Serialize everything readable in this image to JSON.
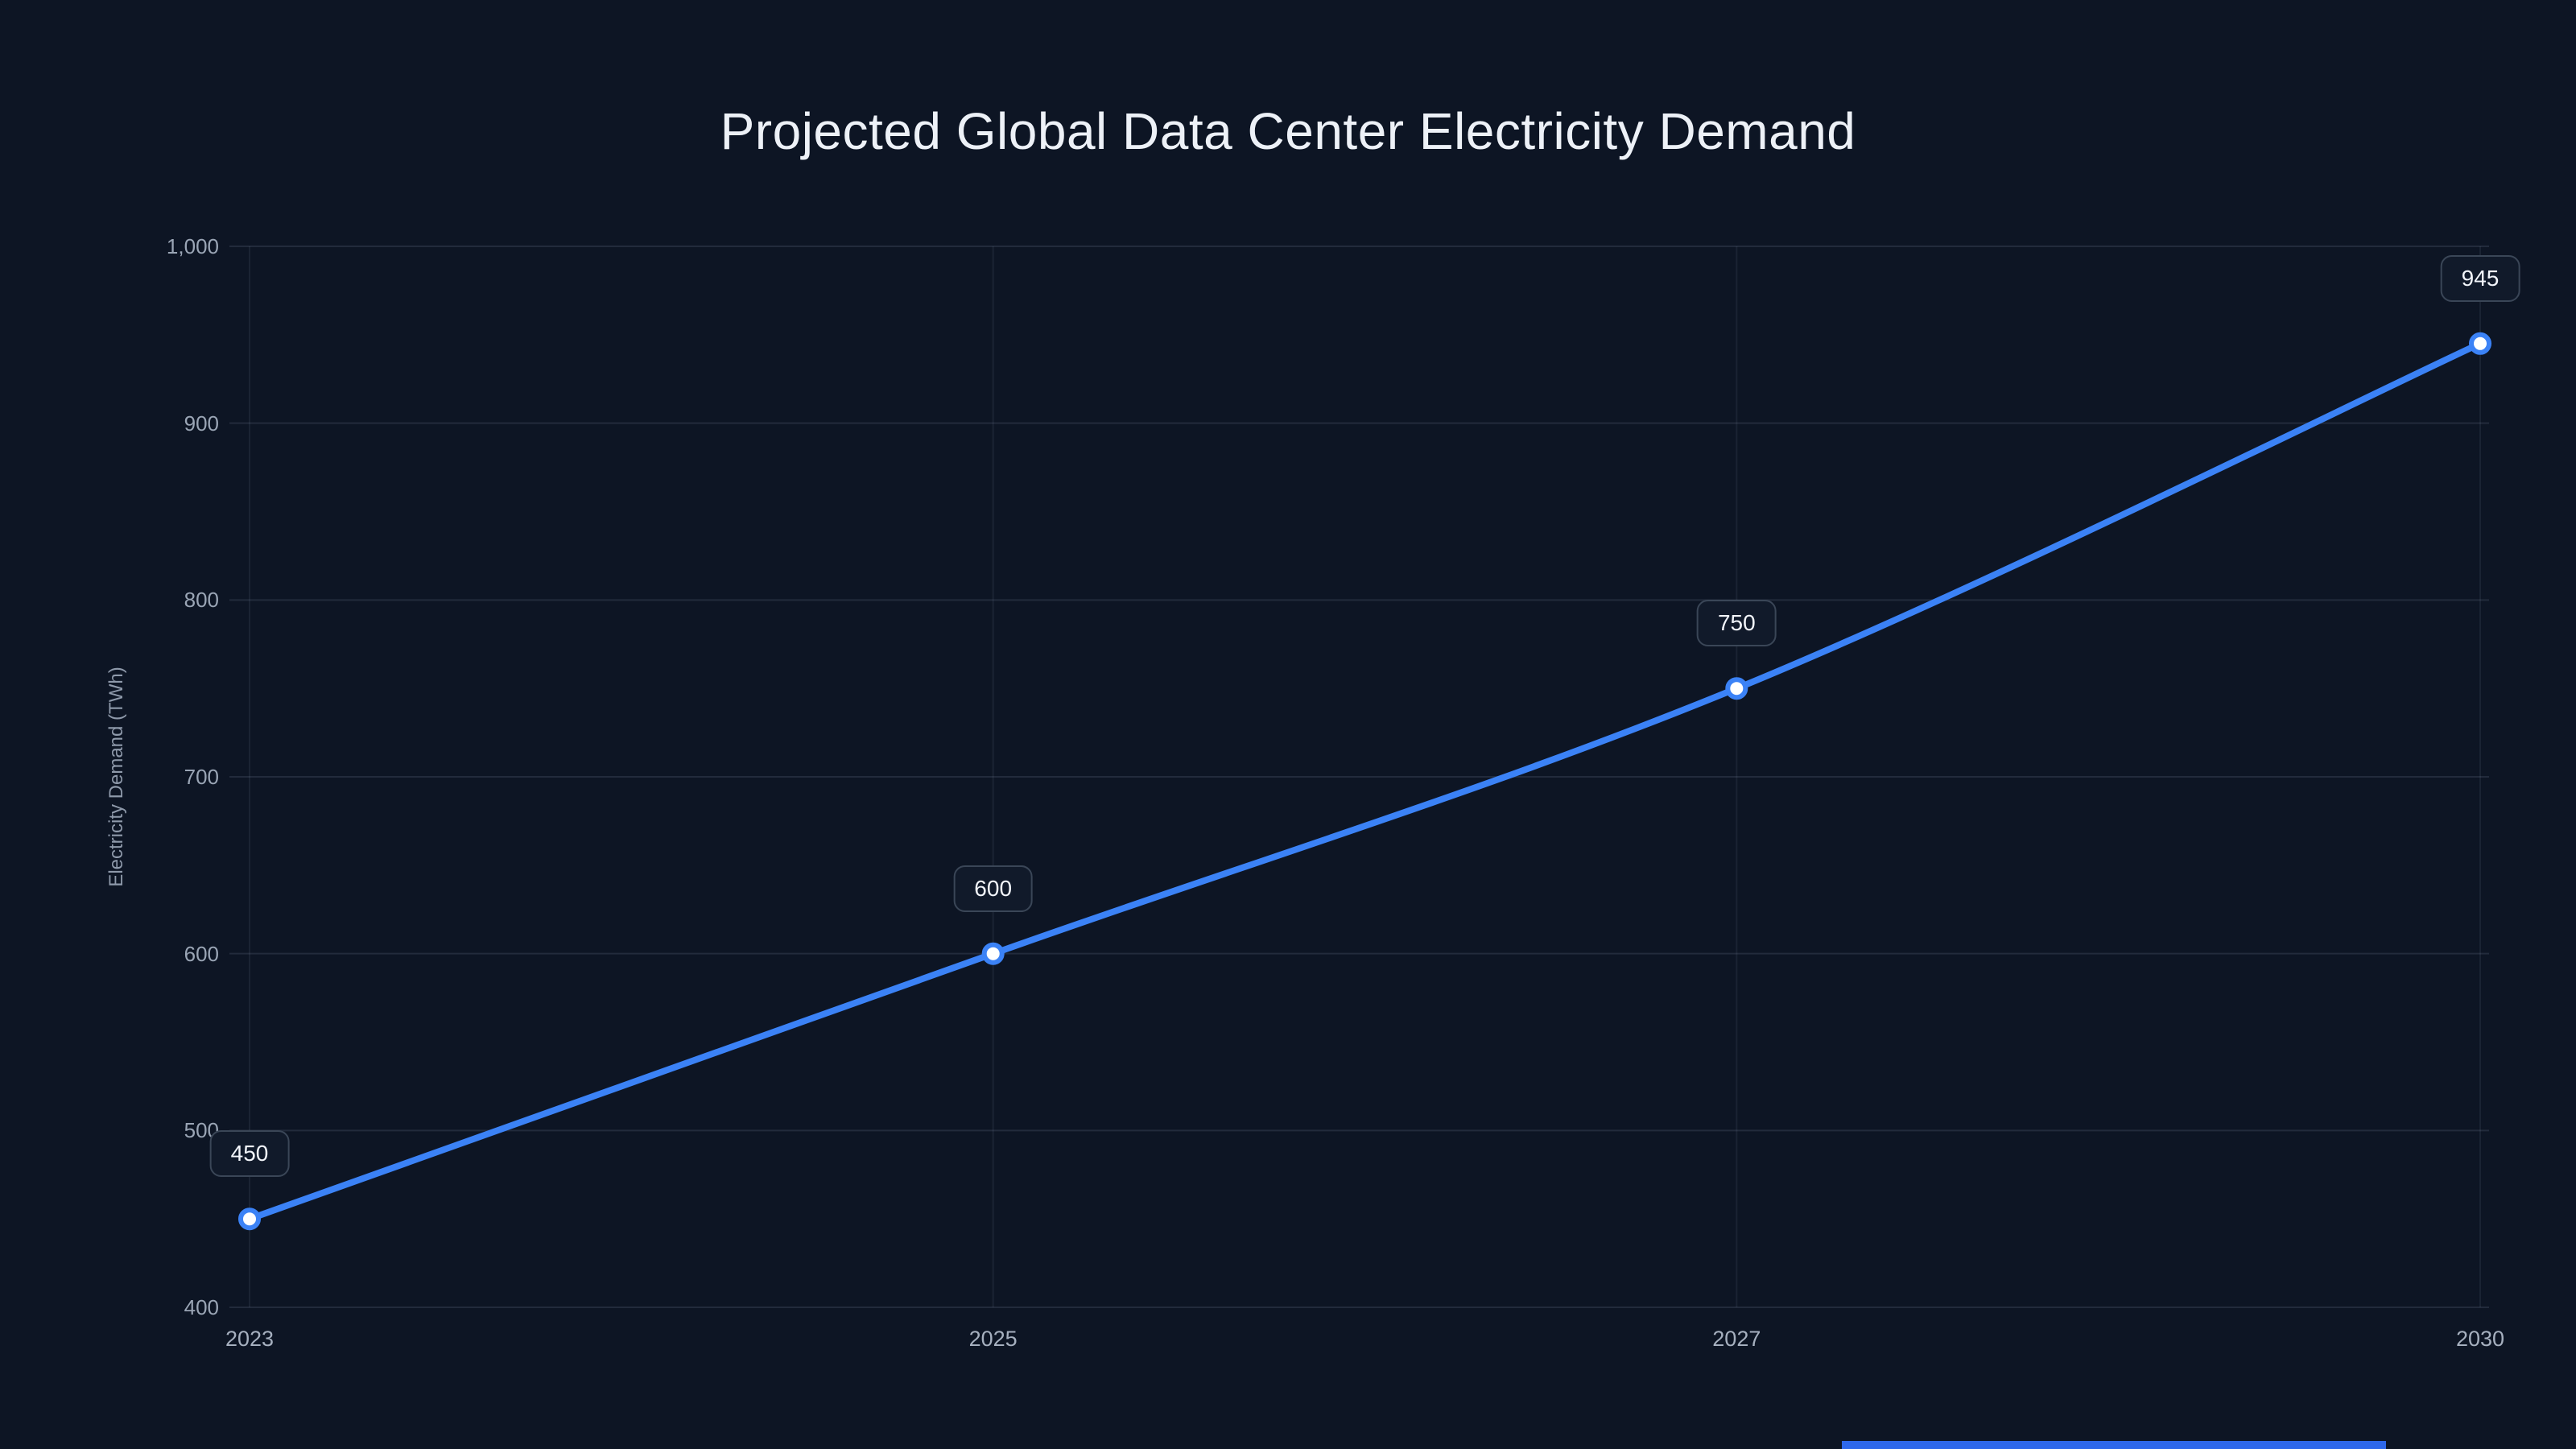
{
  "title": "Projected Global Data Center Electricity Demand",
  "chart_data": {
    "type": "line",
    "title": "Projected Global Data Center Electricity Demand",
    "categories": [
      "2023",
      "2025",
      "2027",
      "2030"
    ],
    "series": [
      {
        "name": "Electricity Demand",
        "values": [
          450,
          600,
          750,
          945
        ]
      }
    ],
    "point_labels": [
      "450",
      "600",
      "750",
      "945"
    ],
    "xlabel": "",
    "ylabel": "Electricity Demand (TWh)",
    "ylim": [
      400,
      1000
    ],
    "yticks": [
      400,
      500,
      600,
      700,
      800,
      900,
      1000
    ],
    "ytick_labels": [
      "400",
      "500",
      "600",
      "700",
      "800",
      "900",
      "1,000"
    ],
    "grid": true,
    "legend_position": "none",
    "colors": {
      "background": "#0d1524",
      "line": "#3b82f6",
      "point_fill": "#ffffff",
      "point_stroke": "#3b82f6",
      "grid_h": "rgba(148,163,184,0.16)",
      "grid_v": "rgba(148,163,184,0.10)",
      "title_text": "#edf1f7",
      "tick_text": "#9aa5b5",
      "axis_label_text": "#8e99aa",
      "label_box_bg": "#111a2a",
      "label_box_border": "#3a4657",
      "label_box_text": "#f2f5fa",
      "accent_bar": "#2e68ea"
    }
  }
}
